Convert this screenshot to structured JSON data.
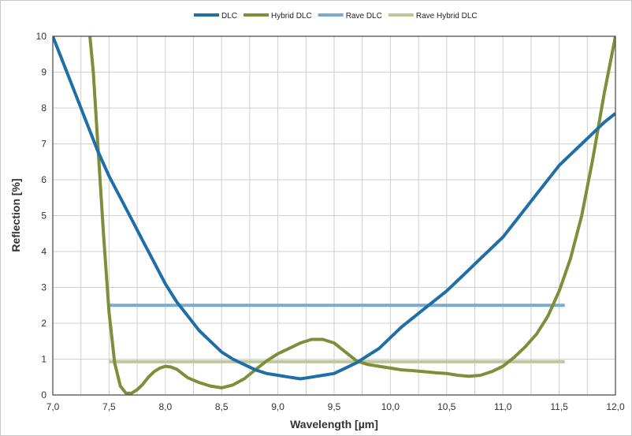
{
  "chart_data": {
    "type": "line",
    "title": "",
    "xlabel": "Wavelength [µm]",
    "ylabel": "Reflection [%]",
    "xlim": [
      7.0,
      12.0
    ],
    "ylim": [
      0,
      10
    ],
    "x_ticks": [
      7.0,
      7.5,
      8.0,
      8.5,
      9.0,
      9.5,
      10.0,
      10.5,
      11.0,
      11.5,
      12.0
    ],
    "x_tick_labels": [
      "7,0",
      "7,5",
      "8,0",
      "8,5",
      "9,0",
      "9,5",
      "10,0",
      "10,5",
      "11,0",
      "11,5",
      "12,0"
    ],
    "y_ticks": [
      0,
      1,
      2,
      3,
      4,
      5,
      6,
      7,
      8,
      9,
      10
    ],
    "y_tick_labels": [
      "0",
      "1",
      "2",
      "3",
      "4",
      "5",
      "6",
      "7",
      "8",
      "9",
      "10"
    ],
    "grid": true,
    "legend_position": "top-center",
    "series": [
      {
        "name": "DLC",
        "color": "#1f6fa6",
        "style": "solid",
        "x": [
          7.0,
          7.1,
          7.2,
          7.3,
          7.4,
          7.5,
          7.6,
          7.7,
          7.8,
          7.9,
          8.0,
          8.1,
          8.2,
          8.3,
          8.4,
          8.5,
          8.6,
          8.7,
          8.8,
          8.9,
          9.0,
          9.1,
          9.2,
          9.3,
          9.4,
          9.5,
          9.6,
          9.7,
          9.8,
          9.9,
          10.0,
          10.1,
          10.2,
          10.3,
          10.4,
          10.5,
          10.6,
          10.7,
          10.8,
          10.9,
          11.0,
          11.1,
          11.2,
          11.3,
          11.4,
          11.5,
          11.6,
          11.7,
          11.8,
          11.9,
          12.0
        ],
        "values": [
          10.0,
          9.2,
          8.4,
          7.6,
          6.8,
          6.1,
          5.5,
          4.9,
          4.3,
          3.7,
          3.1,
          2.6,
          2.2,
          1.8,
          1.5,
          1.2,
          1.0,
          0.85,
          0.7,
          0.6,
          0.55,
          0.5,
          0.45,
          0.5,
          0.55,
          0.6,
          0.75,
          0.9,
          1.1,
          1.3,
          1.6,
          1.9,
          2.15,
          2.4,
          2.65,
          2.9,
          3.2,
          3.5,
          3.8,
          4.1,
          4.4,
          4.8,
          5.2,
          5.6,
          6.0,
          6.4,
          6.7,
          7.0,
          7.3,
          7.6,
          7.85
        ]
      },
      {
        "name": "Hybrid DLC",
        "color": "#7d8f3a",
        "style": "solid",
        "x": [
          7.33,
          7.36,
          7.4,
          7.45,
          7.5,
          7.55,
          7.6,
          7.65,
          7.7,
          7.75,
          7.8,
          7.85,
          7.9,
          7.95,
          8.0,
          8.05,
          8.1,
          8.15,
          8.2,
          8.3,
          8.4,
          8.5,
          8.6,
          8.7,
          8.8,
          8.9,
          9.0,
          9.1,
          9.2,
          9.3,
          9.4,
          9.5,
          9.6,
          9.7,
          9.8,
          9.9,
          10.0,
          10.1,
          10.2,
          10.3,
          10.4,
          10.5,
          10.6,
          10.7,
          10.8,
          10.9,
          11.0,
          11.1,
          11.2,
          11.3,
          11.4,
          11.5,
          11.6,
          11.7,
          11.8,
          11.9,
          12.0
        ],
        "values": [
          10.0,
          9.0,
          7.0,
          4.5,
          2.3,
          0.9,
          0.25,
          0.05,
          0.05,
          0.15,
          0.3,
          0.5,
          0.65,
          0.75,
          0.8,
          0.78,
          0.72,
          0.6,
          0.48,
          0.35,
          0.25,
          0.2,
          0.28,
          0.45,
          0.7,
          0.95,
          1.15,
          1.3,
          1.45,
          1.55,
          1.55,
          1.45,
          1.2,
          0.95,
          0.85,
          0.8,
          0.75,
          0.7,
          0.68,
          0.65,
          0.62,
          0.6,
          0.55,
          0.52,
          0.55,
          0.65,
          0.8,
          1.05,
          1.35,
          1.7,
          2.2,
          2.9,
          3.8,
          5.0,
          6.6,
          8.4,
          10.0
        ]
      },
      {
        "name": "Rave DLC",
        "color": "#7aabd2",
        "style": "solid",
        "x": [
          7.5,
          11.55
        ],
        "values": [
          2.5,
          2.5
        ]
      },
      {
        "name": "Rave Hybrid DLC",
        "color": "#bcc79a",
        "style": "solid",
        "x": [
          7.5,
          11.55
        ],
        "values": [
          0.93,
          0.93
        ]
      }
    ]
  }
}
